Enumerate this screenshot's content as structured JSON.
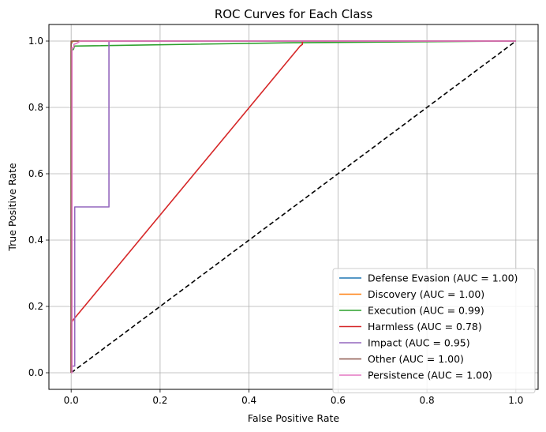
{
  "chart_data": {
    "type": "line",
    "title": "ROC Curves for Each Class",
    "xlabel": "False Positive Rate",
    "ylabel": "True Positive Rate",
    "xlim": [
      -0.05,
      1.05
    ],
    "ylim": [
      -0.05,
      1.05
    ],
    "xticks": [
      "0.0",
      "0.2",
      "0.4",
      "0.6",
      "0.8",
      "1.0"
    ],
    "yticks": [
      "0.0",
      "0.2",
      "0.4",
      "0.6",
      "0.8",
      "1.0"
    ],
    "grid": true,
    "legend_position": "lower-right",
    "diagonal": {
      "x": [
        0,
        1
      ],
      "y": [
        0,
        1
      ],
      "color": "#000000",
      "style": "dashed"
    },
    "series": [
      {
        "name": "Defense Evasion (AUC = 1.00)",
        "color": "#1f77b4",
        "x": [
          0,
          0,
          0.003,
          1
        ],
        "y": [
          0,
          0.99,
          1.0,
          1.0
        ]
      },
      {
        "name": "Discovery (AUC = 1.00)",
        "color": "#ff7f0e",
        "x": [
          0,
          0,
          0.005,
          1
        ],
        "y": [
          0,
          0.995,
          1.0,
          1.0
        ]
      },
      {
        "name": "Execution (AUC = 0.99)",
        "color": "#2ca02c",
        "x": [
          0,
          0,
          0.005,
          0.008,
          0.5,
          1
        ],
        "y": [
          0,
          0.97,
          0.975,
          0.985,
          0.995,
          1.0
        ]
      },
      {
        "name": "Harmless (AUC = 0.78)",
        "color": "#d62728",
        "x": [
          0,
          0,
          0.005,
          0.515,
          0.52,
          0.52,
          1
        ],
        "y": [
          0,
          0.15,
          0.16,
          0.985,
          0.99,
          1.0,
          1.0
        ]
      },
      {
        "name": "Impact (AUC = 0.95)",
        "color": "#9467bd",
        "x": [
          0,
          0,
          0.008,
          0.008,
          0.085,
          0.085,
          1
        ],
        "y": [
          0,
          0.02,
          0.02,
          0.5,
          0.5,
          1.0,
          1.0
        ]
      },
      {
        "name": "Other (AUC = 1.00)",
        "color": "#8c564b",
        "x": [
          0,
          0,
          1
        ],
        "y": [
          0,
          1.0,
          1.0
        ]
      },
      {
        "name": "Persistence (AUC = 1.00)",
        "color": "#e377c2",
        "x": [
          0,
          0.002,
          0.002,
          0.006,
          0.006,
          0.015,
          0.02,
          1
        ],
        "y": [
          0,
          0,
          0.98,
          0.98,
          0.99,
          0.995,
          1.0,
          1.0
        ]
      }
    ]
  }
}
